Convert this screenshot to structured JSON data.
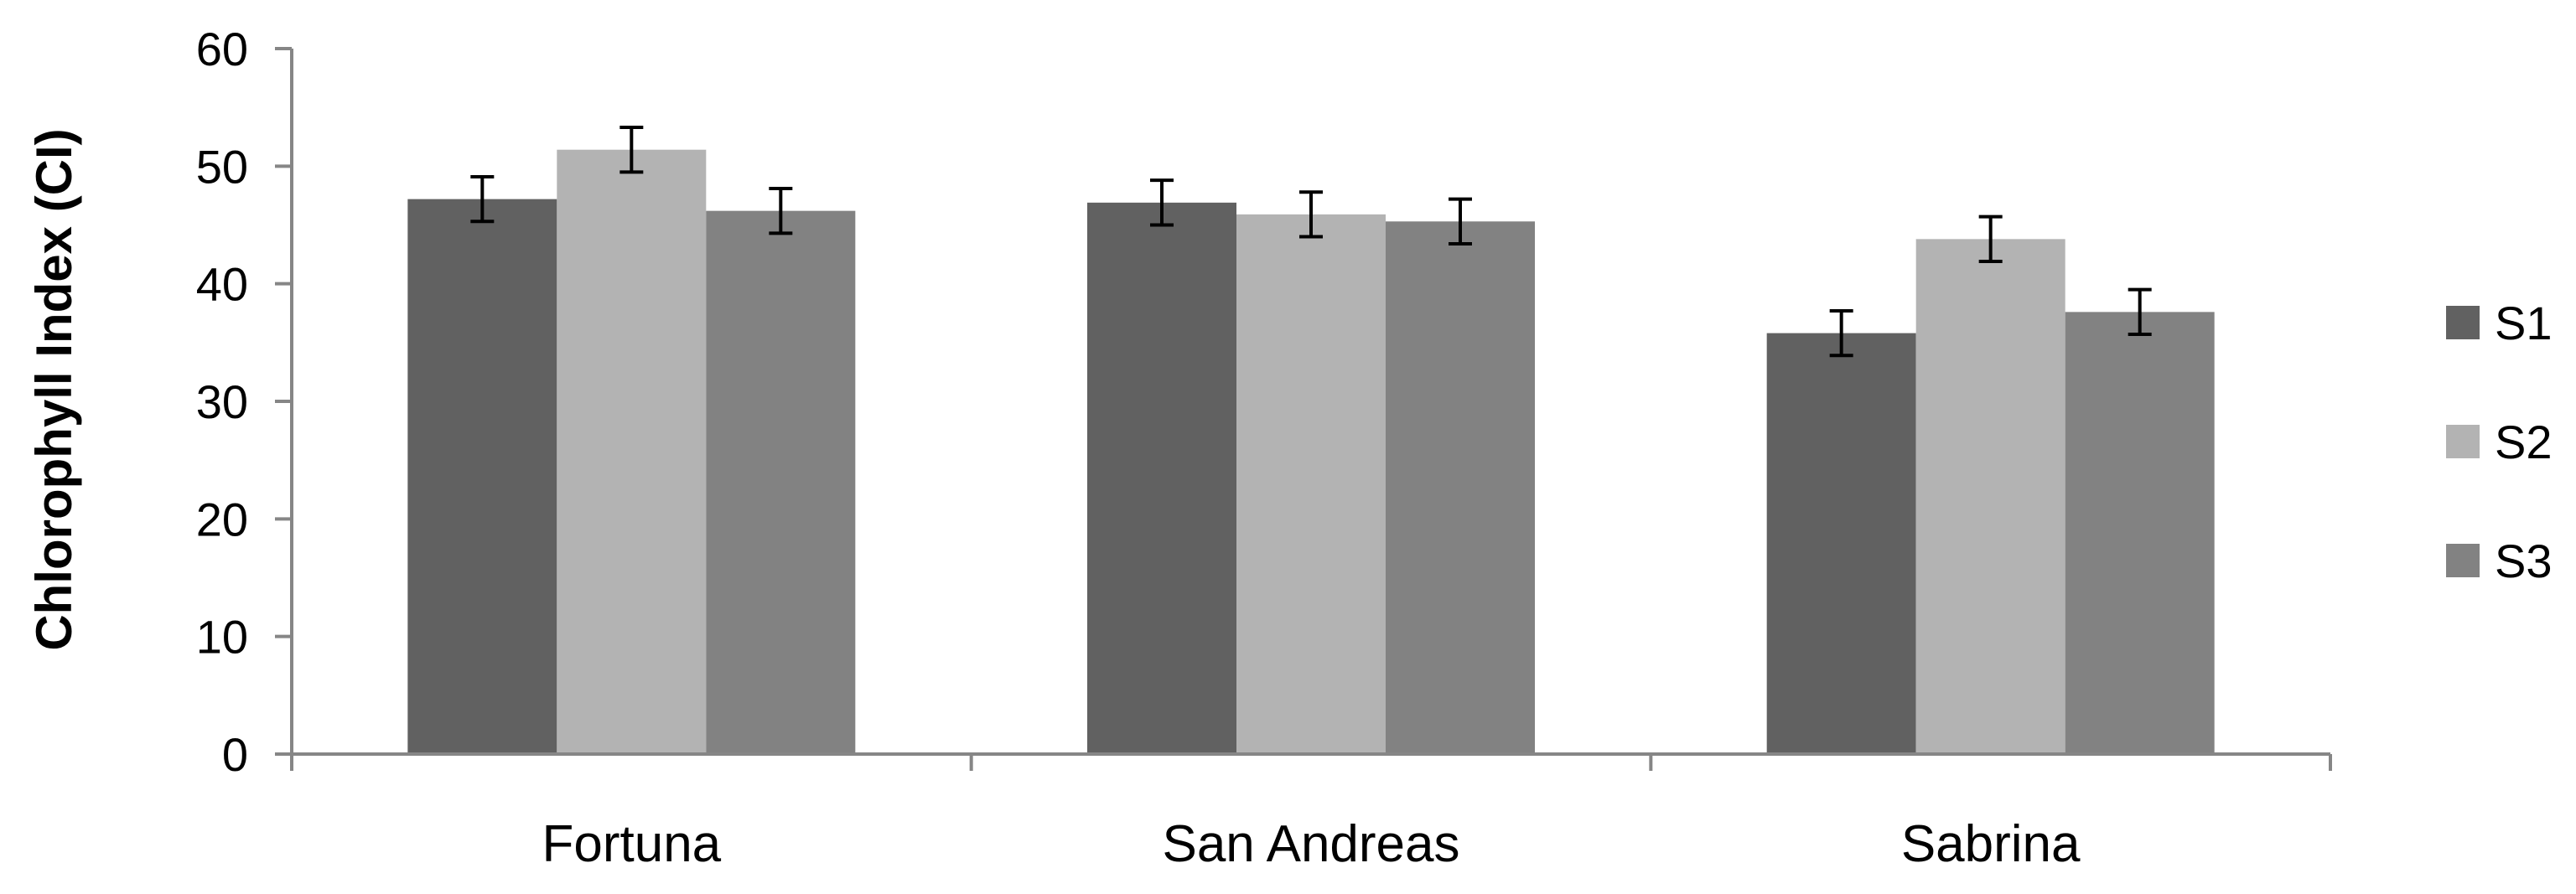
{
  "chart_data": {
    "type": "bar",
    "title": "",
    "xlabel": "",
    "ylabel": "Chlorophyll Index (CI)",
    "ylim": [
      0,
      60
    ],
    "yticks": [
      0,
      10,
      20,
      30,
      40,
      50,
      60
    ],
    "grid": false,
    "legend_position": "right",
    "categories": [
      "Fortuna",
      "San Andreas",
      "Sabrina"
    ],
    "series": [
      {
        "name": "S1",
        "color": "#616161",
        "values": [
          47.2,
          46.9,
          35.8
        ],
        "errors": [
          1.9,
          1.9,
          1.9
        ]
      },
      {
        "name": "S2",
        "color": "#b3b3b3",
        "values": [
          51.4,
          45.9,
          43.8
        ],
        "errors": [
          1.9,
          1.9,
          1.9
        ]
      },
      {
        "name": "S3",
        "color": "#828282",
        "values": [
          46.2,
          45.3,
          37.6
        ],
        "errors": [
          1.9,
          1.9,
          1.9
        ]
      }
    ]
  }
}
